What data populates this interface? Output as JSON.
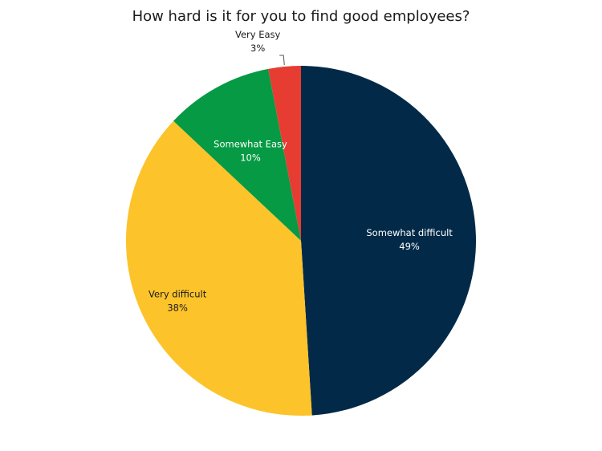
{
  "chart_data": {
    "type": "pie",
    "title": "How hard is it for you to find good employees?",
    "slices": [
      {
        "label": "Somewhat difficult",
        "value": 49,
        "display": "49%",
        "color": "#022a48",
        "text_color": "#ffffff"
      },
      {
        "label": "Very difficult",
        "value": 38,
        "display": "38%",
        "color": "#fcc32a",
        "text_color": "#1a1a1a"
      },
      {
        "label": "Somewhat Easy",
        "value": 10,
        "display": "10%",
        "color": "#069a44",
        "text_color": "#ffffff"
      },
      {
        "label": "Very Easy",
        "value": 3,
        "display": "3%",
        "color": "#e73c32",
        "text_color": "#1a1a1a"
      }
    ],
    "start": "12 o'clock",
    "direction": "clockwise",
    "legend": "none"
  }
}
